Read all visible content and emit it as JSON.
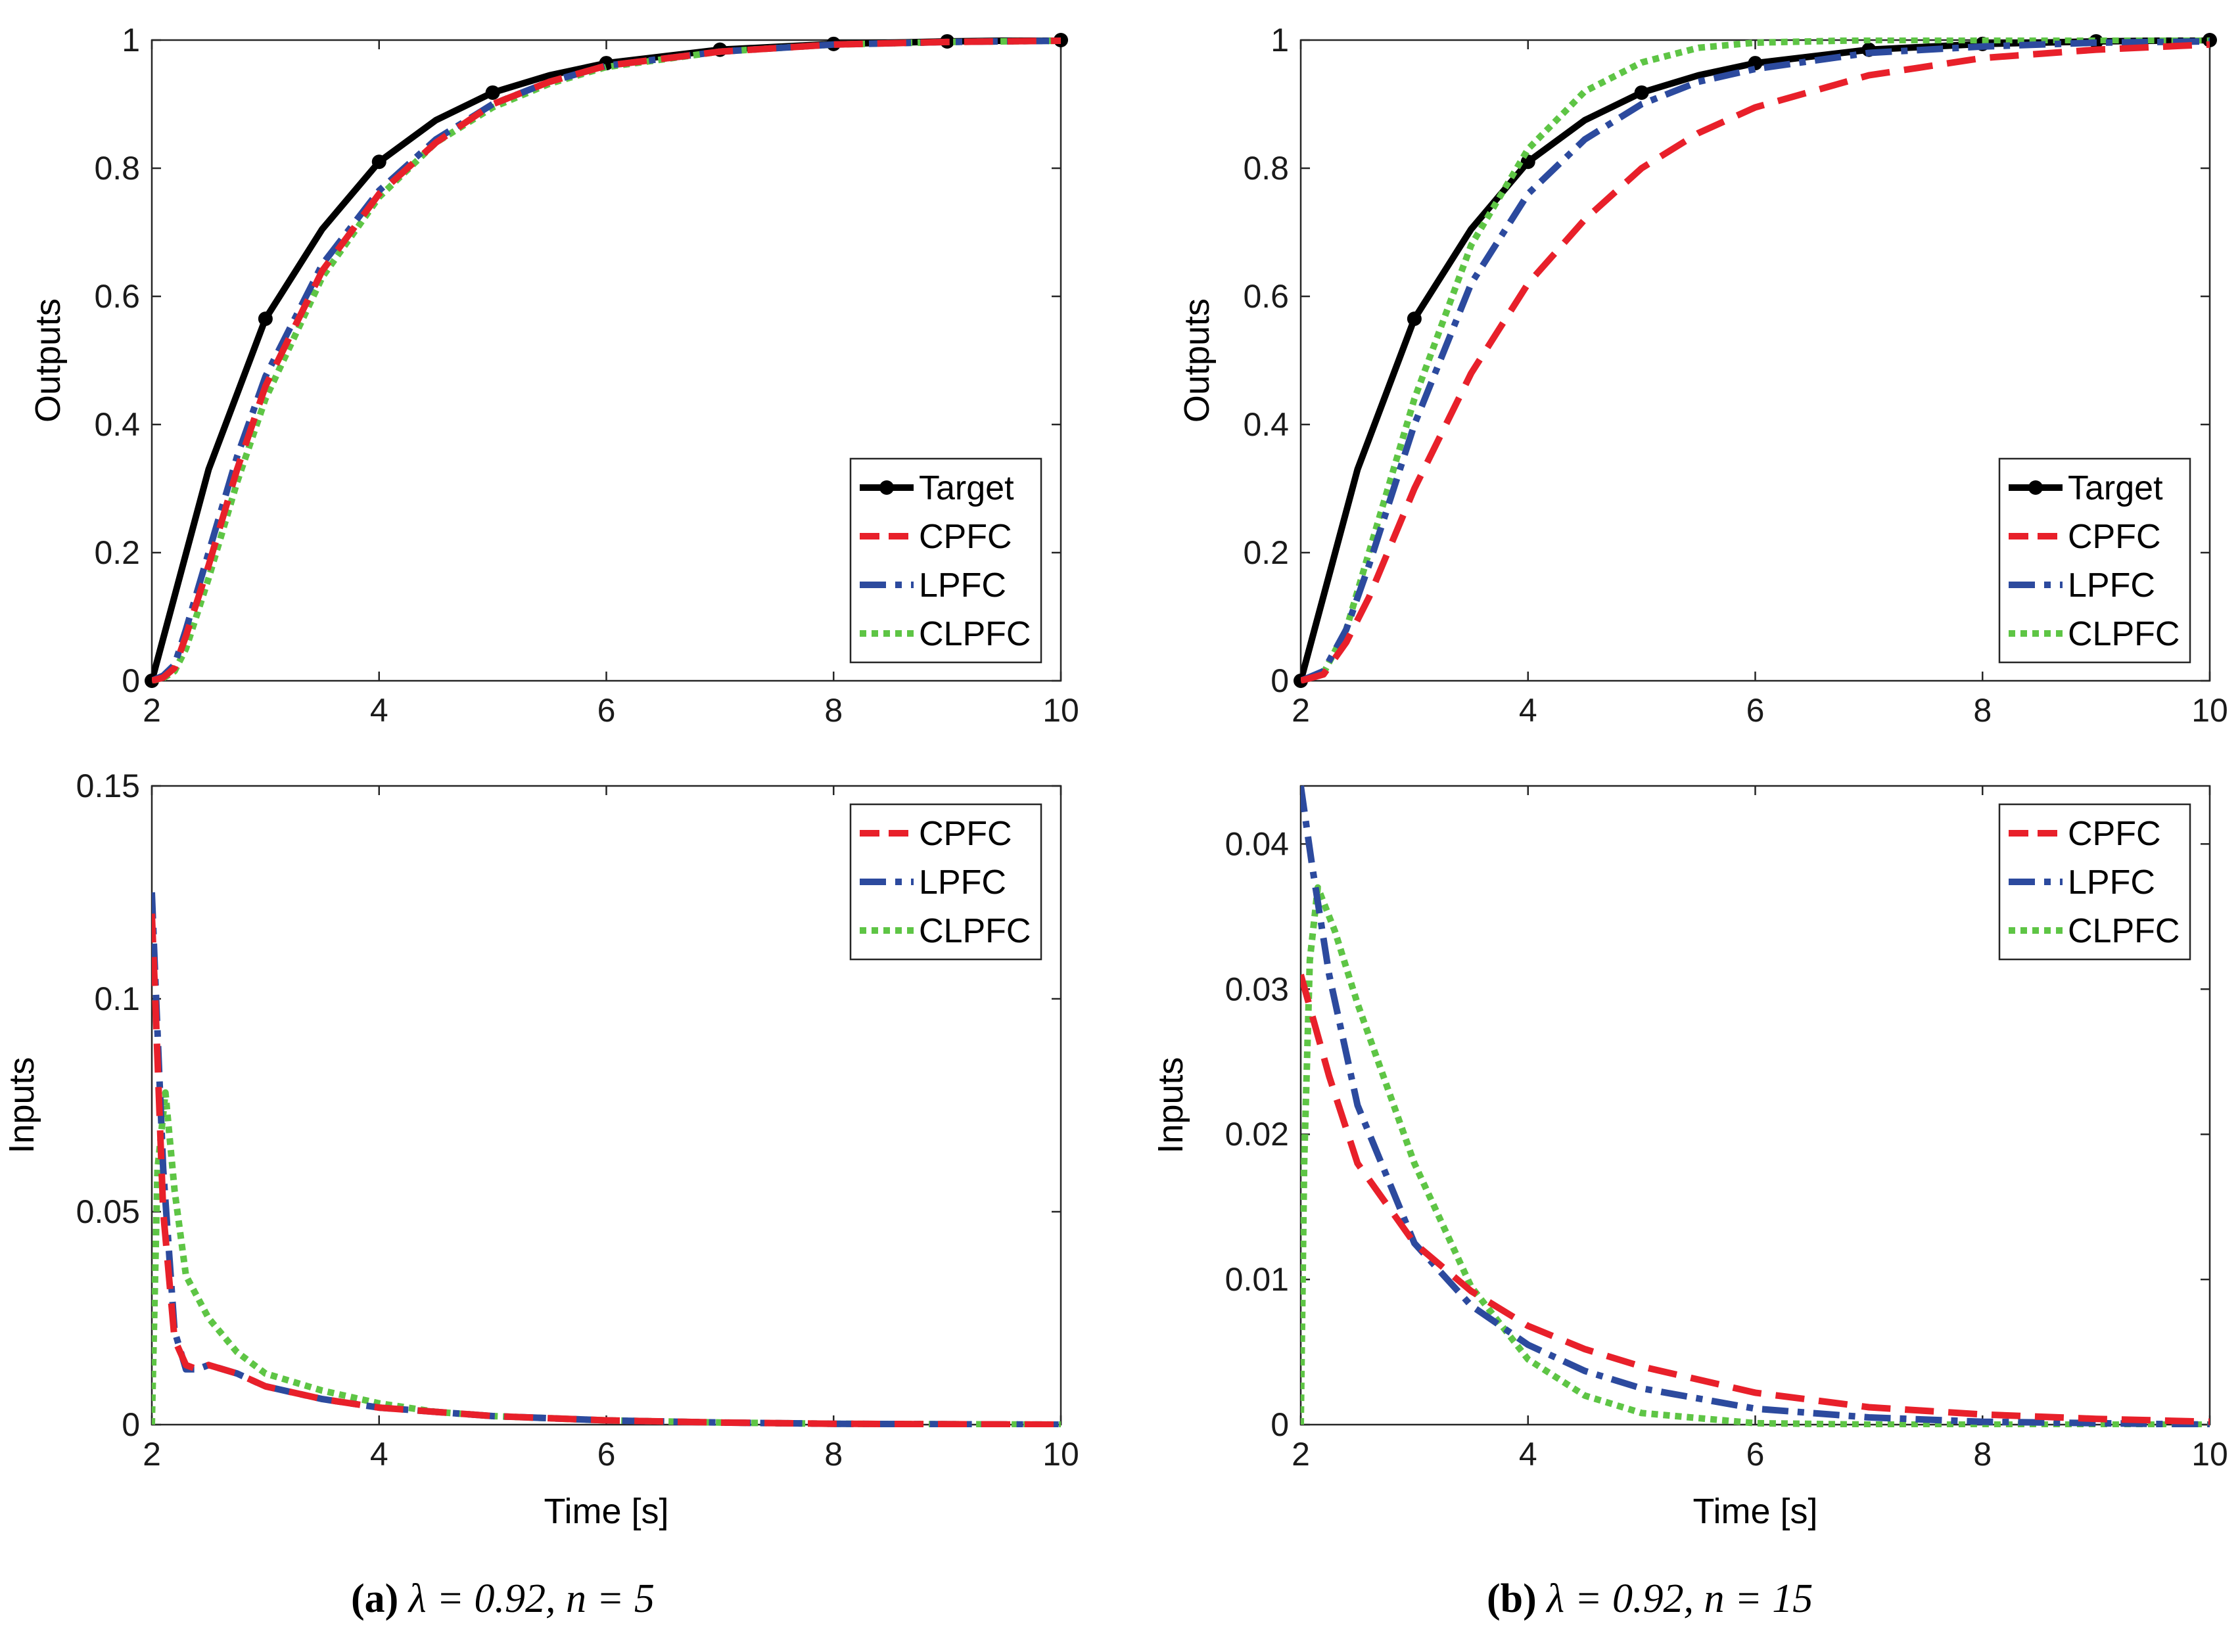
{
  "colors": {
    "Target": "#000000",
    "CPFC": "#e8202a",
    "LPFC": "#2c4a9e",
    "CLPFC": "#5ec545"
  },
  "line_styles": {
    "Target": "solid",
    "CPFC": "dashed",
    "LPFC": "dashdot",
    "CLPFC": "dotted"
  },
  "captions": [
    {
      "tag": "(a)",
      "math": "λ = 0.92, n = 5"
    },
    {
      "tag": "(b)",
      "math": "λ = 0.92, n = 15"
    }
  ],
  "chart_data": [
    {
      "id": "a-outputs",
      "type": "line",
      "title": "",
      "xlabel": "",
      "ylabel": "Outputs",
      "xlim": [
        2,
        10
      ],
      "ylim": [
        0,
        1
      ],
      "xticks": [
        "2",
        "4",
        "6",
        "8",
        "10"
      ],
      "yticks": [
        "0",
        "0.2",
        "0.4",
        "0.6",
        "0.8",
        "1"
      ],
      "legend": [
        "Target",
        "CPFC",
        "LPFC",
        "CLPFC"
      ],
      "legend_position": "bottom-right",
      "series": [
        {
          "name": "Target",
          "markers": true,
          "x": [
            2,
            2.5,
            3,
            3.5,
            4,
            4.5,
            5,
            5.5,
            6,
            7,
            8,
            9,
            10
          ],
          "y": [
            0,
            0.33,
            0.565,
            0.705,
            0.81,
            0.875,
            0.918,
            0.945,
            0.964,
            0.985,
            0.994,
            0.998,
            1.0
          ]
        },
        {
          "name": "CPFC",
          "x": [
            2,
            2.1,
            2.2,
            2.3,
            2.5,
            2.75,
            3,
            3.5,
            4,
            4.5,
            5,
            5.5,
            6,
            7,
            8,
            9,
            10
          ],
          "y": [
            0,
            0.005,
            0.02,
            0.07,
            0.18,
            0.33,
            0.46,
            0.64,
            0.76,
            0.84,
            0.9,
            0.935,
            0.96,
            0.982,
            0.993,
            0.997,
            0.999
          ]
        },
        {
          "name": "LPFC",
          "x": [
            2,
            2.1,
            2.2,
            2.3,
            2.5,
            2.75,
            3,
            3.5,
            4,
            4.5,
            5,
            5.5,
            6,
            7,
            8,
            9,
            10
          ],
          "y": [
            0,
            0.008,
            0.025,
            0.08,
            0.2,
            0.35,
            0.475,
            0.65,
            0.765,
            0.845,
            0.9,
            0.935,
            0.96,
            0.982,
            0.993,
            0.997,
            0.999
          ]
        },
        {
          "name": "CLPFC",
          "x": [
            2,
            2.1,
            2.2,
            2.3,
            2.5,
            2.75,
            3,
            3.5,
            4,
            4.5,
            5,
            5.5,
            6,
            7,
            8,
            9,
            10
          ],
          "y": [
            0,
            0.004,
            0.015,
            0.05,
            0.16,
            0.31,
            0.44,
            0.63,
            0.755,
            0.84,
            0.895,
            0.932,
            0.958,
            0.982,
            0.993,
            0.997,
            0.999
          ]
        }
      ]
    },
    {
      "id": "a-inputs",
      "type": "line",
      "title": "",
      "xlabel": "Time [s]",
      "ylabel": "Inputs",
      "xlim": [
        2,
        10
      ],
      "ylim": [
        0,
        0.15
      ],
      "xticks": [
        "2",
        "4",
        "6",
        "8",
        "10"
      ],
      "yticks": [
        "0",
        "0.05",
        "0.1",
        "0.15"
      ],
      "legend": [
        "CPFC",
        "LPFC",
        "CLPFC"
      ],
      "legend_position": "top-right",
      "series": [
        {
          "name": "CPFC",
          "x": [
            2,
            2.03,
            2.1,
            2.2,
            2.3,
            2.4,
            2.5,
            2.75,
            3,
            3.5,
            4,
            4.5,
            5,
            6,
            7,
            8,
            10
          ],
          "y": [
            0.12,
            0.1,
            0.05,
            0.02,
            0.014,
            0.013,
            0.014,
            0.012,
            0.009,
            0.006,
            0.004,
            0.003,
            0.002,
            0.001,
            0.0005,
            0.0002,
            0
          ]
        },
        {
          "name": "LPFC",
          "x": [
            2,
            2.03,
            2.1,
            2.2,
            2.3,
            2.4,
            2.5,
            2.75,
            3,
            3.5,
            4,
            4.5,
            5,
            6,
            7,
            8,
            10
          ],
          "y": [
            0.125,
            0.105,
            0.06,
            0.022,
            0.013,
            0.013,
            0.014,
            0.012,
            0.009,
            0.006,
            0.004,
            0.003,
            0.002,
            0.001,
            0.0005,
            0.0002,
            0
          ]
        },
        {
          "name": "CLPFC",
          "x": [
            2,
            2.05,
            2.12,
            2.2,
            2.3,
            2.5,
            2.75,
            3,
            3.5,
            4,
            4.5,
            5,
            6,
            7,
            8,
            10
          ],
          "y": [
            0,
            0.06,
            0.078,
            0.055,
            0.035,
            0.025,
            0.017,
            0.012,
            0.008,
            0.005,
            0.003,
            0.002,
            0.001,
            0.0005,
            0.0002,
            0
          ]
        }
      ]
    },
    {
      "id": "b-outputs",
      "type": "line",
      "title": "",
      "xlabel": "",
      "ylabel": "Outputs",
      "xlim": [
        2,
        10
      ],
      "ylim": [
        0,
        1
      ],
      "xticks": [
        "2",
        "4",
        "6",
        "8",
        "10"
      ],
      "yticks": [
        "0",
        "0.2",
        "0.4",
        "0.6",
        "0.8",
        "1"
      ],
      "legend": [
        "Target",
        "CPFC",
        "LPFC",
        "CLPFC"
      ],
      "legend_position": "bottom-right",
      "series": [
        {
          "name": "Target",
          "markers": true,
          "x": [
            2,
            2.5,
            3,
            3.5,
            4,
            4.5,
            5,
            5.5,
            6,
            7,
            8,
            9,
            10
          ],
          "y": [
            0,
            0.33,
            0.565,
            0.705,
            0.81,
            0.875,
            0.918,
            0.945,
            0.964,
            0.985,
            0.994,
            0.998,
            1.0
          ]
        },
        {
          "name": "CPFC",
          "x": [
            2,
            2.2,
            2.4,
            2.6,
            3,
            3.5,
            4,
            4.5,
            5,
            5.5,
            6,
            7,
            8,
            9,
            10
          ],
          "y": [
            0,
            0.01,
            0.06,
            0.13,
            0.3,
            0.48,
            0.62,
            0.72,
            0.8,
            0.855,
            0.895,
            0.945,
            0.972,
            0.985,
            0.993
          ]
        },
        {
          "name": "LPFC",
          "x": [
            2,
            2.2,
            2.4,
            2.6,
            3,
            3.5,
            4,
            4.5,
            5,
            5.5,
            6,
            7,
            8,
            9,
            10
          ],
          "y": [
            0,
            0.015,
            0.08,
            0.18,
            0.4,
            0.62,
            0.76,
            0.845,
            0.9,
            0.935,
            0.955,
            0.98,
            0.99,
            0.996,
            0.998
          ]
        },
        {
          "name": "CLPFC",
          "x": [
            2,
            2.2,
            2.4,
            2.6,
            3,
            3.5,
            4,
            4.5,
            5,
            5.5,
            6,
            7,
            8,
            9,
            10
          ],
          "y": [
            0,
            0.012,
            0.08,
            0.2,
            0.44,
            0.68,
            0.83,
            0.92,
            0.965,
            0.988,
            0.996,
            1.0,
            1.0,
            1.0,
            1.0
          ]
        }
      ]
    },
    {
      "id": "b-inputs",
      "type": "line",
      "title": "",
      "xlabel": "Time [s]",
      "ylabel": "Inputs",
      "xlim": [
        2,
        10
      ],
      "ylim": [
        0,
        0.044
      ],
      "xticks": [
        "2",
        "4",
        "6",
        "8",
        "10"
      ],
      "yticks": [
        "0",
        "0.01",
        "0.02",
        "0.03",
        "0.04"
      ],
      "legend": [
        "CPFC",
        "LPFC",
        "CLPFC"
      ],
      "legend_position": "top-right",
      "series": [
        {
          "name": "CPFC",
          "x": [
            2,
            2.25,
            2.5,
            3,
            3.5,
            4,
            4.5,
            5,
            6,
            7,
            8,
            9,
            10
          ],
          "y": [
            0.031,
            0.024,
            0.018,
            0.0125,
            0.0092,
            0.0068,
            0.0052,
            0.004,
            0.0022,
            0.0012,
            0.0007,
            0.0004,
            0.0002
          ]
        },
        {
          "name": "LPFC",
          "x": [
            2,
            2.1,
            2.25,
            2.5,
            3,
            3.5,
            4,
            4.5,
            5,
            6,
            7,
            8,
            10
          ],
          "y": [
            0.044,
            0.0385,
            0.031,
            0.022,
            0.0125,
            0.0082,
            0.0055,
            0.0037,
            0.0025,
            0.0011,
            0.0005,
            0.0002,
            0
          ]
        },
        {
          "name": "CLPFC",
          "x": [
            2,
            2.03,
            2.08,
            2.15,
            2.3,
            2.5,
            3,
            3.5,
            4,
            4.5,
            5,
            6,
            7,
            10
          ],
          "y": [
            0,
            0.018,
            0.032,
            0.037,
            0.034,
            0.029,
            0.018,
            0.0095,
            0.0045,
            0.002,
            0.0008,
            0.0001,
            0,
            0
          ]
        }
      ]
    }
  ]
}
